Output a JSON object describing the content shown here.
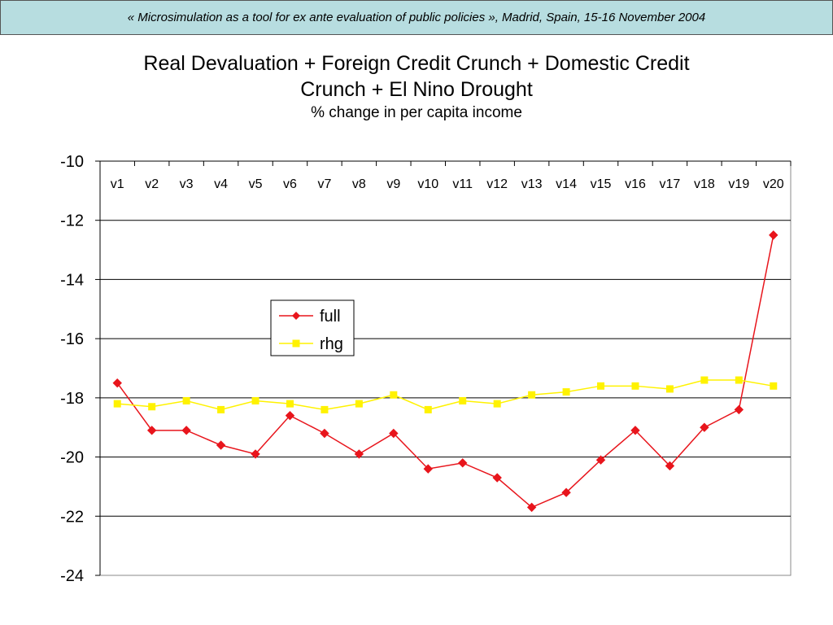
{
  "banner": {
    "text": "« Microsimulation as a tool for ex ante evaluation of public policies », Madrid, Spain, 15-16 November 2004"
  },
  "chart_data": {
    "type": "line",
    "title_lines": [
      "Real Devaluation + Foreign Credit Crunch + Domestic Credit",
      "Crunch + El Nino Drought"
    ],
    "subtitle": "% change in per capita income",
    "categories": [
      "v1",
      "v2",
      "v3",
      "v4",
      "v5",
      "v6",
      "v7",
      "v8",
      "v9",
      "v10",
      "v11",
      "v12",
      "v13",
      "v14",
      "v15",
      "v16",
      "v17",
      "v18",
      "v19",
      "v20"
    ],
    "series": [
      {
        "name": "full",
        "color": "#e8151c",
        "marker": "diamond",
        "values": [
          -17.5,
          -19.1,
          -19.1,
          -19.6,
          -19.9,
          -18.6,
          -19.2,
          -19.9,
          -19.2,
          -20.4,
          -20.2,
          -20.7,
          -21.7,
          -21.2,
          -20.1,
          -19.1,
          -20.3,
          -19.0,
          -18.4,
          -12.5
        ]
      },
      {
        "name": "rhg",
        "color": "#fff200",
        "marker": "square",
        "values": [
          -18.2,
          -18.3,
          -18.1,
          -18.4,
          -18.1,
          -18.2,
          -18.4,
          -18.2,
          -17.9,
          -18.4,
          -18.1,
          -18.2,
          -17.9,
          -17.8,
          -17.6,
          -17.6,
          -17.7,
          -17.4,
          -17.4,
          -17.6
        ]
      }
    ],
    "ylim": [
      -24,
      -10
    ],
    "yticks": [
      -10,
      -12,
      -14,
      -16,
      -18,
      -20,
      -22,
      -24
    ],
    "grid": true,
    "legend_position": "center-left"
  }
}
